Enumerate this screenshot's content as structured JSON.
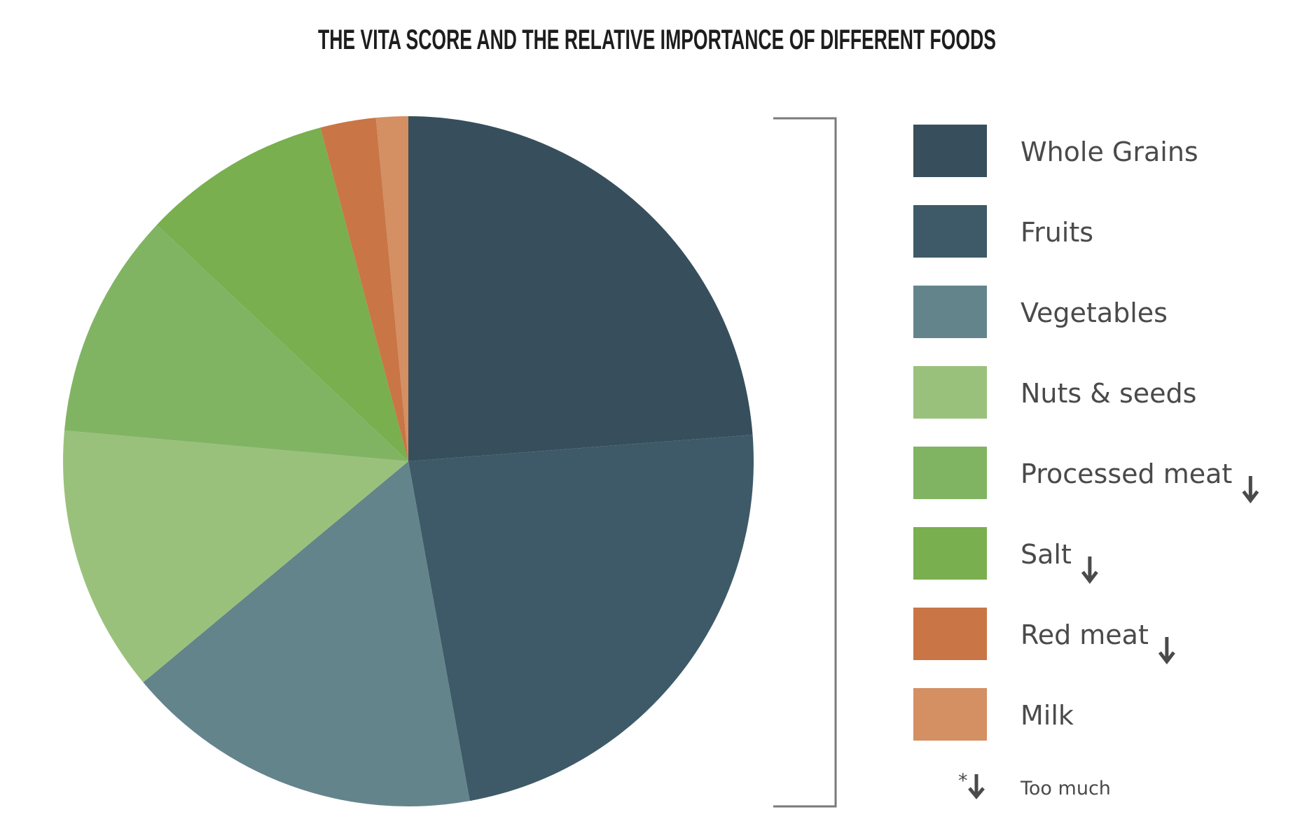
{
  "chart_data": {
    "type": "pie",
    "title": "THE VITA SCORE AND THE RELATIVE IMPORTANCE OF DIFFERENT FOODS",
    "start_angle": "12 o'clock",
    "direction": "clockwise",
    "legend_placement": "right",
    "slices": [
      {
        "label": "Whole Grains",
        "value": 23.8,
        "color": "#374f5c",
        "too_much": false
      },
      {
        "label": "Fruits",
        "value": 23.4,
        "color": "#3e5a68",
        "too_much": false
      },
      {
        "label": "Vegetables",
        "value": 16.8,
        "color": "#64848b",
        "too_much": false
      },
      {
        "label": "Nuts & seeds",
        "value": 12.5,
        "color": "#9ac17c",
        "too_much": false
      },
      {
        "label": "Processed meat",
        "value": 10.6,
        "color": "#80b463",
        "too_much": true
      },
      {
        "label": "Salt",
        "value": 8.9,
        "color": "#79af4e",
        "too_much": true
      },
      {
        "label": "Red meat",
        "value": 2.6,
        "color": "#c97545",
        "too_much": true
      },
      {
        "label": "Milk",
        "value": 1.5,
        "color": "#d48f63",
        "too_much": false
      }
    ],
    "footnote": {
      "marker": "*",
      "icon": "down-arrow-icon",
      "text": "Too much"
    }
  }
}
